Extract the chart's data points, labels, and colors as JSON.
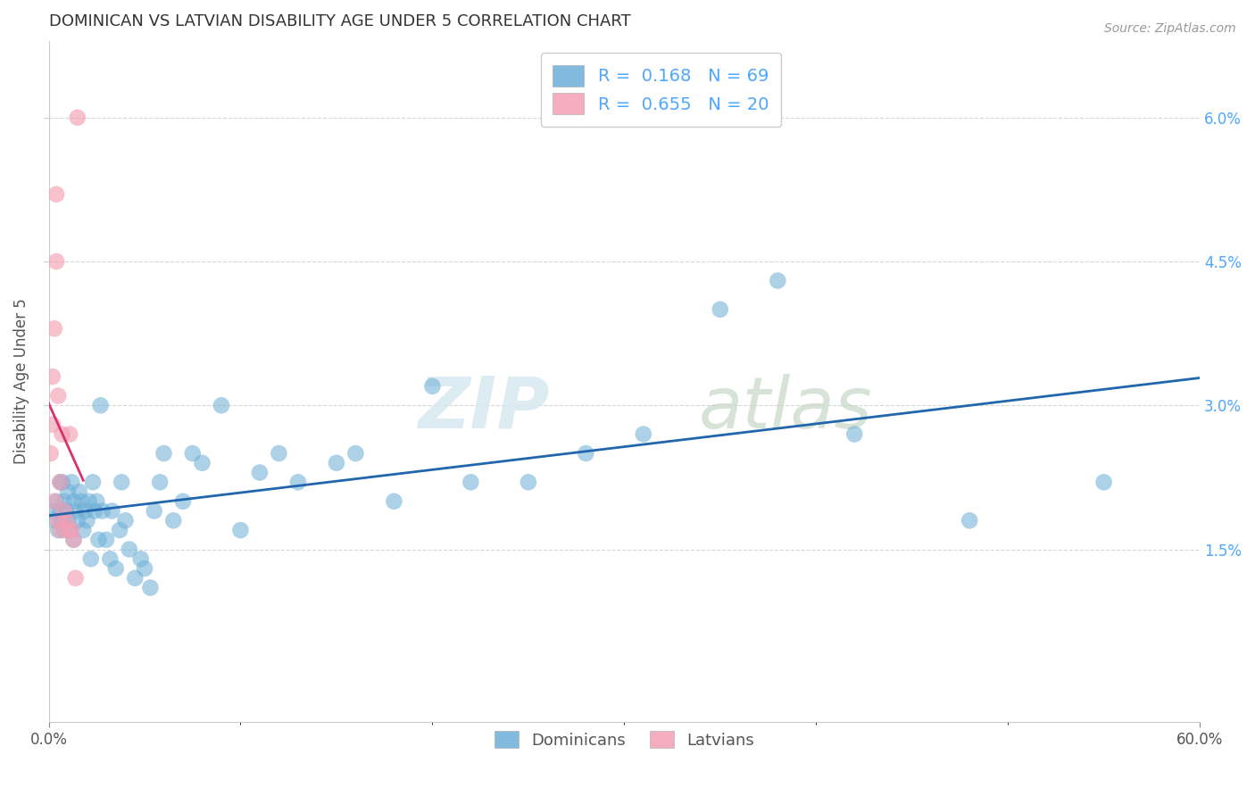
{
  "title": "DOMINICAN VS LATVIAN DISABILITY AGE UNDER 5 CORRELATION CHART",
  "source": "Source: ZipAtlas.com",
  "ylabel": "Disability Age Under 5",
  "xlim": [
    0.0,
    0.6
  ],
  "ylim": [
    -0.003,
    0.068
  ],
  "yticks": [
    0.015,
    0.03,
    0.045,
    0.06
  ],
  "ytick_labels": [
    "1.5%",
    "3.0%",
    "4.5%",
    "6.0%"
  ],
  "xtick_left_label": "0.0%",
  "xtick_right_label": "60.0%",
  "blue_color": "#6baed6",
  "pink_color": "#f4a0b5",
  "blue_line_color": "#2166ac",
  "pink_line_color": "#d6336c",
  "legend_r_blue": "0.168",
  "legend_n_blue": "69",
  "legend_r_pink": "0.655",
  "legend_n_pink": "20",
  "legend_label_blue": "Dominicans",
  "legend_label_pink": "Latvians",
  "watermark_zip": "ZIP",
  "watermark_atlas": "atlas",
  "blue_points_x": [
    0.002,
    0.003,
    0.004,
    0.005,
    0.006,
    0.006,
    0.007,
    0.007,
    0.008,
    0.008,
    0.009,
    0.01,
    0.01,
    0.011,
    0.012,
    0.013,
    0.013,
    0.014,
    0.015,
    0.016,
    0.017,
    0.018,
    0.019,
    0.02,
    0.021,
    0.022,
    0.023,
    0.024,
    0.025,
    0.026,
    0.027,
    0.028,
    0.03,
    0.032,
    0.033,
    0.035,
    0.037,
    0.038,
    0.04,
    0.042,
    0.045,
    0.048,
    0.05,
    0.053,
    0.055,
    0.058,
    0.06,
    0.065,
    0.07,
    0.075,
    0.08,
    0.09,
    0.1,
    0.11,
    0.12,
    0.13,
    0.15,
    0.16,
    0.18,
    0.2,
    0.22,
    0.25,
    0.28,
    0.31,
    0.35,
    0.38,
    0.42,
    0.48,
    0.55
  ],
  "blue_points_y": [
    0.019,
    0.018,
    0.02,
    0.017,
    0.019,
    0.022,
    0.018,
    0.022,
    0.017,
    0.02,
    0.019,
    0.021,
    0.018,
    0.017,
    0.022,
    0.016,
    0.02,
    0.019,
    0.018,
    0.021,
    0.02,
    0.017,
    0.019,
    0.018,
    0.02,
    0.014,
    0.022,
    0.019,
    0.02,
    0.016,
    0.03,
    0.019,
    0.016,
    0.014,
    0.019,
    0.013,
    0.017,
    0.022,
    0.018,
    0.015,
    0.012,
    0.014,
    0.013,
    0.011,
    0.019,
    0.022,
    0.025,
    0.018,
    0.02,
    0.025,
    0.024,
    0.03,
    0.017,
    0.023,
    0.025,
    0.022,
    0.024,
    0.025,
    0.02,
    0.032,
    0.022,
    0.022,
    0.025,
    0.027,
    0.04,
    0.043,
    0.027,
    0.018,
    0.022
  ],
  "pink_points_x": [
    0.001,
    0.002,
    0.002,
    0.003,
    0.003,
    0.004,
    0.004,
    0.005,
    0.005,
    0.006,
    0.006,
    0.007,
    0.008,
    0.009,
    0.01,
    0.011,
    0.012,
    0.013,
    0.014,
    0.015
  ],
  "pink_points_y": [
    0.025,
    0.028,
    0.033,
    0.02,
    0.038,
    0.045,
    0.052,
    0.018,
    0.031,
    0.022,
    0.017,
    0.027,
    0.019,
    0.018,
    0.017,
    0.027,
    0.017,
    0.016,
    0.012,
    0.06
  ]
}
